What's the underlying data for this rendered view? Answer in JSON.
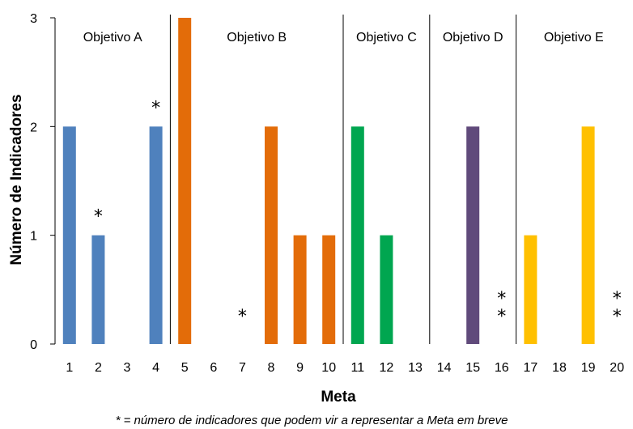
{
  "chart_data": {
    "type": "bar",
    "xlabel": "Meta",
    "ylabel": "Número de Indicadores",
    "ylim": [
      0,
      3
    ],
    "yticks": [
      "0",
      "1",
      "2",
      "3"
    ],
    "categories": [
      "1",
      "2",
      "3",
      "4",
      "5",
      "6",
      "7",
      "8",
      "9",
      "10",
      "11",
      "12",
      "13",
      "14",
      "15",
      "16",
      "17",
      "18",
      "19",
      "20"
    ],
    "values": [
      2,
      1,
      0,
      2,
      3,
      0,
      0,
      2,
      1,
      1,
      2,
      1,
      0,
      0,
      2,
      0,
      1,
      0,
      2,
      0
    ],
    "groups": [
      {
        "name": "Objetivo A",
        "start": 1,
        "end": 4,
        "color": "#4f81bd"
      },
      {
        "name": "Objetivo B",
        "start": 5,
        "end": 10,
        "color": "#e36c09"
      },
      {
        "name": "Objetivo C",
        "start": 11,
        "end": 13,
        "color": "#00a650"
      },
      {
        "name": "Objetivo D",
        "start": 14,
        "end": 16,
        "color": "#604a7b"
      },
      {
        "name": "Objetivo E",
        "start": 17,
        "end": 20,
        "color": "#ffc000"
      }
    ],
    "annotations": [
      {
        "meta": 2,
        "text": "*"
      },
      {
        "meta": 4,
        "text": "*"
      },
      {
        "meta": 7,
        "text": "*"
      },
      {
        "meta": 16,
        "text": "*\n*"
      },
      {
        "meta": 20,
        "text": "*\n*"
      }
    ],
    "footnote": "* = número de indicadores que podem vir a representar a Meta em breve"
  }
}
